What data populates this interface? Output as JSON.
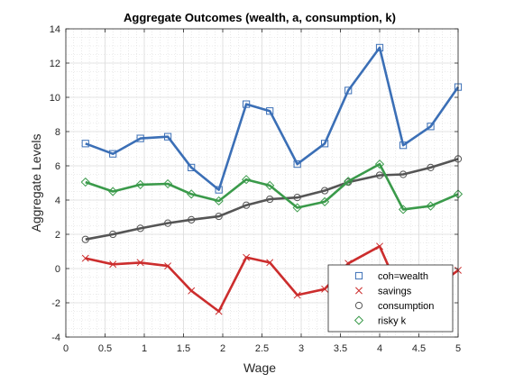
{
  "chart_data": {
    "type": "line",
    "title": "Aggregate Outcomes (wealth, a, consumption, k)",
    "xlabel": "Wage",
    "ylabel": "Aggregate Levels",
    "xlim": [
      0,
      5
    ],
    "ylim": [
      -4,
      14
    ],
    "xticks": [
      0,
      0.5,
      1,
      1.5,
      2,
      2.5,
      3,
      3.5,
      4,
      4.5,
      5
    ],
    "xtick_labels": [
      "0",
      "0.5",
      "1",
      "1.5",
      "2",
      "2.5",
      "3",
      "3.5",
      "4",
      "4.5",
      "5"
    ],
    "yticks": [
      -4,
      -2,
      0,
      2,
      4,
      6,
      8,
      10,
      12,
      14
    ],
    "ytick_labels": [
      "-4",
      "-2",
      "0",
      "2",
      "4",
      "6",
      "8",
      "10",
      "12",
      "14"
    ],
    "grid": true,
    "minor_grid": true,
    "legend_position": "bottom-right",
    "x": [
      0.25,
      0.6,
      0.95,
      1.3,
      1.6,
      1.95,
      2.3,
      2.6,
      2.95,
      3.3,
      3.6,
      4.0,
      4.3,
      4.65,
      5.0
    ],
    "series": [
      {
        "name": "coh=wealth",
        "color": "#3b6fb6",
        "marker": "square",
        "values": [
          7.3,
          6.7,
          7.6,
          7.7,
          5.9,
          4.6,
          9.6,
          9.2,
          6.1,
          7.3,
          10.4,
          12.9,
          7.2,
          8.3,
          10.6
        ]
      },
      {
        "name": "savings",
        "color": "#cc2d2d",
        "marker": "x",
        "values": [
          0.6,
          0.25,
          0.35,
          0.15,
          -1.3,
          -2.5,
          0.65,
          0.35,
          -1.55,
          -1.2,
          0.3,
          1.3,
          -1.8,
          -1.3,
          -0.1
        ]
      },
      {
        "name": "consumption",
        "color": "#555555",
        "marker": "circle",
        "values": [
          1.7,
          2.0,
          2.35,
          2.65,
          2.85,
          3.05,
          3.7,
          4.05,
          4.15,
          4.55,
          5.05,
          5.45,
          5.5,
          5.9,
          6.4
        ]
      },
      {
        "name": "risky k",
        "color": "#3a9a4a",
        "marker": "diamond",
        "values": [
          5.05,
          4.5,
          4.9,
          4.95,
          4.35,
          3.95,
          5.2,
          4.85,
          3.55,
          3.9,
          5.1,
          6.1,
          3.45,
          3.65,
          4.35
        ]
      }
    ]
  }
}
